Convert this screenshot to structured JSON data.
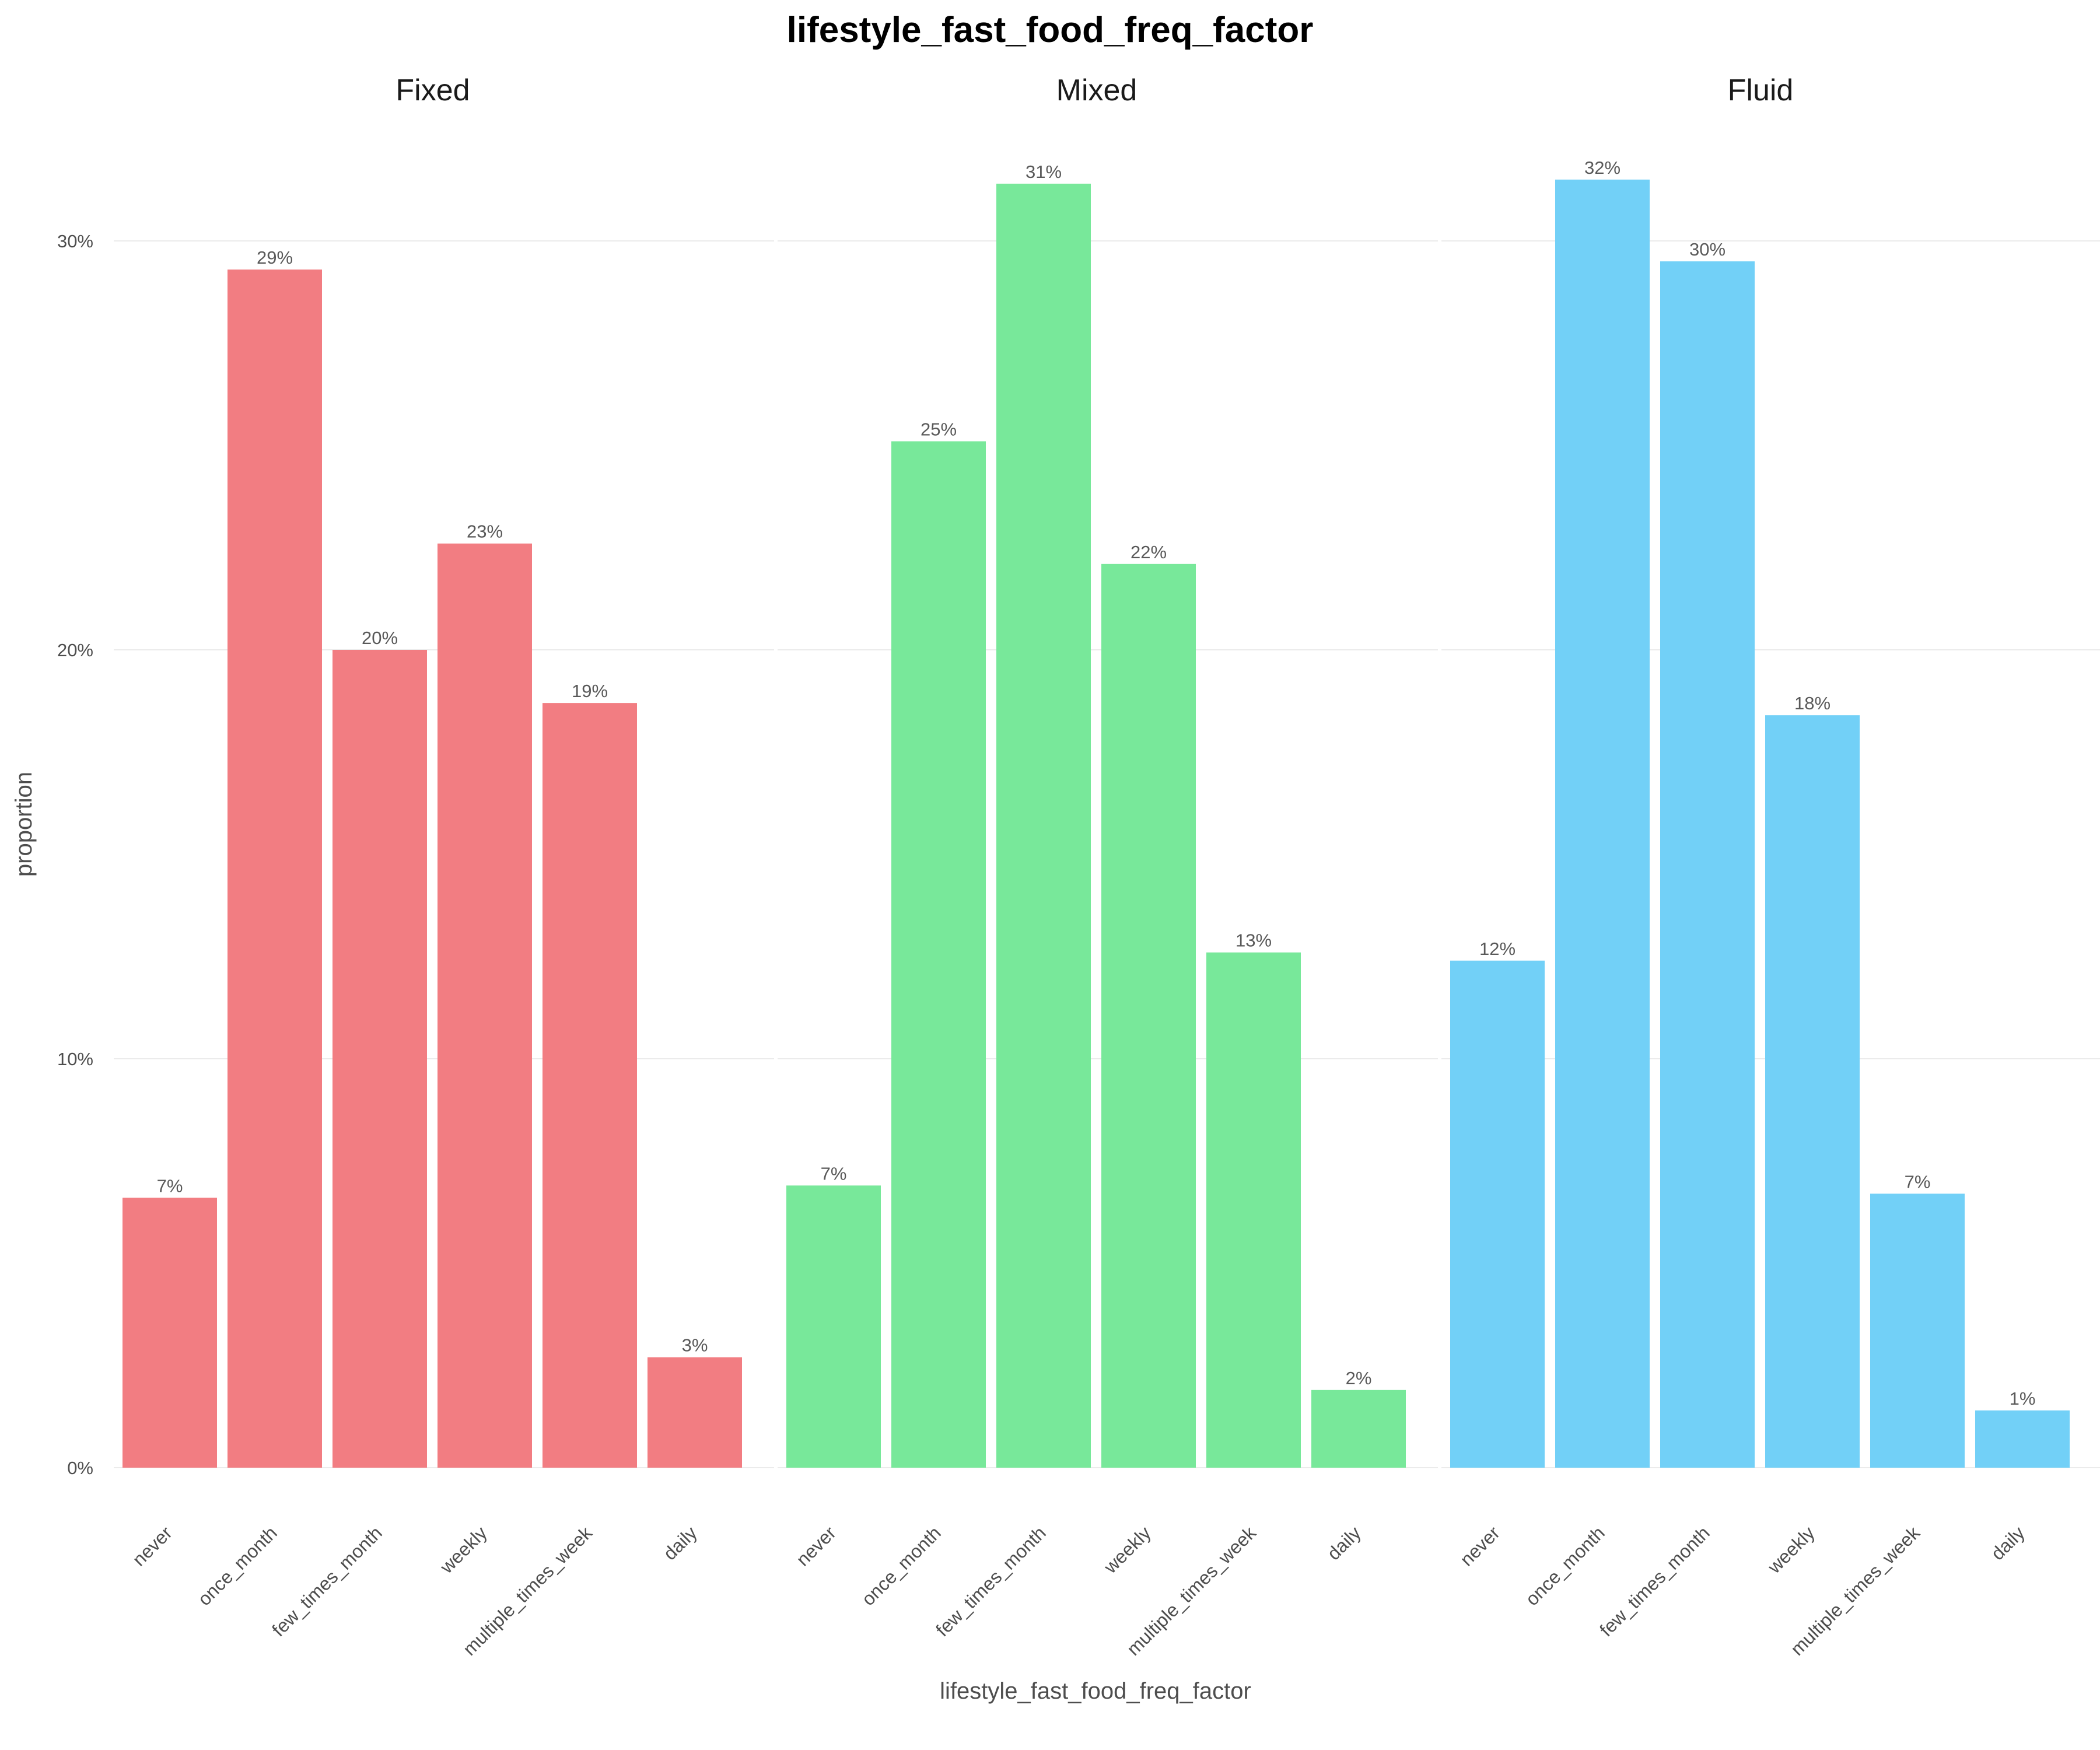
{
  "colors": {
    "Fixed": "#F27D82",
    "Mixed": "#78E89A",
    "Fluid": "#72D0F7"
  },
  "chart_data": {
    "type": "bar",
    "title": "lifestyle_fast_food_freq_factor",
    "xlabel": "lifestyle_fast_food_freq_factor",
    "ylabel": "proportion",
    "ylim": [
      0,
      0.32
    ],
    "yticks": [
      0,
      0.1,
      0.2,
      0.3
    ],
    "ytick_labels": [
      "0%",
      "10%",
      "20%",
      "30%"
    ],
    "grid": true,
    "categories": [
      "never",
      "once_month",
      "few_times_month",
      "weekly",
      "multiple_times_week",
      "daily"
    ],
    "panels": [
      {
        "name": "Fixed",
        "values": [
          0.066,
          0.293,
          0.2,
          0.226,
          0.187,
          0.027
        ],
        "labels": [
          "7%",
          "29%",
          "20%",
          "23%",
          "19%",
          "3%"
        ]
      },
      {
        "name": "Mixed",
        "values": [
          0.069,
          0.251,
          0.314,
          0.221,
          0.126,
          0.019
        ],
        "labels": [
          "7%",
          "25%",
          "31%",
          "22%",
          "13%",
          "2%"
        ]
      },
      {
        "name": "Fluid",
        "values": [
          0.124,
          0.315,
          0.295,
          0.184,
          0.067,
          0.014
        ],
        "labels": [
          "12%",
          "32%",
          "30%",
          "18%",
          "7%",
          "1%"
        ]
      }
    ]
  }
}
